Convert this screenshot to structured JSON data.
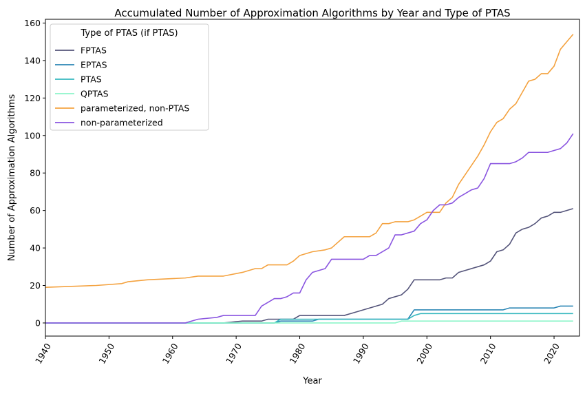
{
  "chart_data": {
    "type": "line",
    "title": "Accumulated Number of Approximation Algorithms by Year and Type of PTAS",
    "xlabel": "Year",
    "ylabel": "Number of Approximation Algorithms",
    "xlim": [
      1940,
      2024
    ],
    "ylim": [
      -7,
      162
    ],
    "xticks": [
      1940,
      1950,
      1960,
      1970,
      1980,
      1990,
      2000,
      2010,
      2020
    ],
    "yticks": [
      0,
      20,
      40,
      60,
      80,
      100,
      120,
      140,
      160
    ],
    "grid": false,
    "legend": {
      "title": "Type of PTAS (if PTAS)",
      "placement": "top-left"
    },
    "series": [
      {
        "name": "FPTAS",
        "color": "#54547a",
        "points": [
          [
            1940,
            0
          ],
          [
            1968,
            0
          ],
          [
            1971,
            1
          ],
          [
            1974,
            1
          ],
          [
            1975,
            2
          ],
          [
            1979,
            2
          ],
          [
            1980,
            4
          ],
          [
            1987,
            4
          ],
          [
            1988,
            5
          ],
          [
            1993,
            10
          ],
          [
            1994,
            13
          ],
          [
            1996,
            15
          ],
          [
            1997,
            18
          ],
          [
            1998,
            23
          ],
          [
            2002,
            23
          ],
          [
            2003,
            24
          ],
          [
            2004,
            24
          ],
          [
            2005,
            27
          ],
          [
            2009,
            31
          ],
          [
            2010,
            33
          ],
          [
            2011,
            38
          ],
          [
            2012,
            39
          ],
          [
            2013,
            42
          ],
          [
            2014,
            48
          ],
          [
            2015,
            50
          ],
          [
            2016,
            51
          ],
          [
            2017,
            53
          ],
          [
            2018,
            56
          ],
          [
            2019,
            57
          ],
          [
            2020,
            59
          ],
          [
            2021,
            59
          ],
          [
            2022,
            60
          ],
          [
            2023,
            61
          ]
        ]
      },
      {
        "name": "EPTAS",
        "color": "#2b86b5",
        "points": [
          [
            1940,
            0
          ],
          [
            1976,
            0
          ],
          [
            1977,
            1
          ],
          [
            1982,
            1
          ],
          [
            1983,
            2
          ],
          [
            1997,
            2
          ],
          [
            1998,
            7
          ],
          [
            2012,
            7
          ],
          [
            2013,
            8
          ],
          [
            2020,
            8
          ],
          [
            2021,
            9
          ],
          [
            2023,
            9
          ]
        ]
      },
      {
        "name": "PTAS",
        "color": "#36b8bf",
        "points": [
          [
            1940,
            0
          ],
          [
            1976,
            0
          ],
          [
            1977,
            2
          ],
          [
            1997,
            2
          ],
          [
            1998,
            4
          ],
          [
            1999,
            5
          ],
          [
            2023,
            5
          ]
        ]
      },
      {
        "name": "QPTAS",
        "color": "#8df5c9",
        "points": [
          [
            1940,
            0
          ],
          [
            1995,
            0
          ],
          [
            1996,
            1
          ],
          [
            2023,
            1
          ]
        ]
      },
      {
        "name": "parameterized, non-PTAS",
        "color": "#f4a23f",
        "points": [
          [
            1940,
            19
          ],
          [
            1948,
            20
          ],
          [
            1952,
            21
          ],
          [
            1953,
            22
          ],
          [
            1956,
            23
          ],
          [
            1962,
            24
          ],
          [
            1964,
            25
          ],
          [
            1968,
            25
          ],
          [
            1971,
            27
          ],
          [
            1973,
            29
          ],
          [
            1974,
            29
          ],
          [
            1975,
            31
          ],
          [
            1978,
            31
          ],
          [
            1979,
            33
          ],
          [
            1980,
            36
          ],
          [
            1982,
            38
          ],
          [
            1984,
            39
          ],
          [
            1985,
            40
          ],
          [
            1987,
            46
          ],
          [
            1991,
            46
          ],
          [
            1992,
            48
          ],
          [
            1993,
            53
          ],
          [
            1994,
            53
          ],
          [
            1995,
            54
          ],
          [
            1997,
            54
          ],
          [
            1998,
            55
          ],
          [
            1999,
            57
          ],
          [
            2000,
            59
          ],
          [
            2002,
            59
          ],
          [
            2003,
            64
          ],
          [
            2004,
            67
          ],
          [
            2005,
            74
          ],
          [
            2006,
            79
          ],
          [
            2007,
            84
          ],
          [
            2008,
            89
          ],
          [
            2009,
            95
          ],
          [
            2010,
            102
          ],
          [
            2011,
            107
          ],
          [
            2012,
            109
          ],
          [
            2013,
            114
          ],
          [
            2014,
            117
          ],
          [
            2015,
            123
          ],
          [
            2016,
            129
          ],
          [
            2017,
            130
          ],
          [
            2018,
            133
          ],
          [
            2019,
            133
          ],
          [
            2020,
            137
          ],
          [
            2021,
            146
          ],
          [
            2022,
            150
          ],
          [
            2023,
            154
          ]
        ]
      },
      {
        "name": "non-parameterized",
        "color": "#8a55e0",
        "points": [
          [
            1940,
            0
          ],
          [
            1962,
            0
          ],
          [
            1964,
            2
          ],
          [
            1967,
            3
          ],
          [
            1968,
            4
          ],
          [
            1973,
            4
          ],
          [
            1974,
            9
          ],
          [
            1975,
            11
          ],
          [
            1976,
            13
          ],
          [
            1977,
            13
          ],
          [
            1978,
            14
          ],
          [
            1979,
            16
          ],
          [
            1980,
            16
          ],
          [
            1981,
            23
          ],
          [
            1982,
            27
          ],
          [
            1984,
            29
          ],
          [
            1985,
            34
          ],
          [
            1990,
            34
          ],
          [
            1991,
            36
          ],
          [
            1992,
            36
          ],
          [
            1994,
            40
          ],
          [
            1995,
            47
          ],
          [
            1996,
            47
          ],
          [
            1998,
            49
          ],
          [
            1999,
            53
          ],
          [
            2000,
            55
          ],
          [
            2001,
            60
          ],
          [
            2002,
            63
          ],
          [
            2003,
            63
          ],
          [
            2004,
            64
          ],
          [
            2005,
            67
          ],
          [
            2006,
            69
          ],
          [
            2007,
            71
          ],
          [
            2008,
            72
          ],
          [
            2009,
            77
          ],
          [
            2010,
            85
          ],
          [
            2013,
            85
          ],
          [
            2014,
            86
          ],
          [
            2015,
            88
          ],
          [
            2016,
            91
          ],
          [
            2019,
            91
          ],
          [
            2020,
            92
          ],
          [
            2021,
            93
          ],
          [
            2022,
            96
          ],
          [
            2023,
            101
          ]
        ]
      }
    ]
  }
}
